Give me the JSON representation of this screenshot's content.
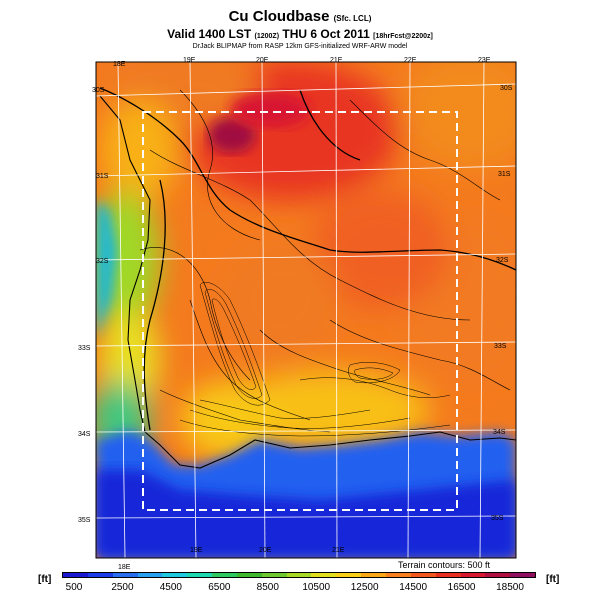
{
  "header": {
    "title": "Cu Cloudbase",
    "title_suffix": "(Sfc. LCL)",
    "valid_line": "Valid 1400 LST",
    "valid_z": "(1200Z)",
    "valid_date": "THU 6 Oct 2011",
    "forecast_tag": "[18hrFcst@2200z]",
    "credit": "DrJack BLIPMAP from RASP 12km GFS-initialized WRF-ARW model"
  },
  "map": {
    "lon_labels_top": [
      "18E",
      "19E",
      "20E",
      "21E",
      "22E",
      "23E"
    ],
    "lon_labels_bottom": [
      "18E",
      "19E",
      "20E",
      "21E"
    ],
    "lat_labels_left": [
      "30S",
      "31S",
      "32S",
      "33S",
      "34S",
      "35S"
    ],
    "lat_labels_right": [
      "30S",
      "31S",
      "32S",
      "33S",
      "34S",
      "35S"
    ],
    "terrain_note": "Terrain contours: 500 ft"
  },
  "colorbar": {
    "unit": "[ft]",
    "tick_labels": [
      "500",
      "2500",
      "4500",
      "6500",
      "8500",
      "10500",
      "12500",
      "14500",
      "16500",
      "18500"
    ],
    "colors": [
      "#1a1ad0",
      "#1e3ae8",
      "#2a6ef0",
      "#2aa0f0",
      "#20c8e0",
      "#20d8b0",
      "#30c860",
      "#40b830",
      "#70c830",
      "#a8d828",
      "#e0e020",
      "#f8d018",
      "#f8a818",
      "#f88020",
      "#f05820",
      "#e83020",
      "#d81830",
      "#b01040",
      "#901060"
    ]
  }
}
